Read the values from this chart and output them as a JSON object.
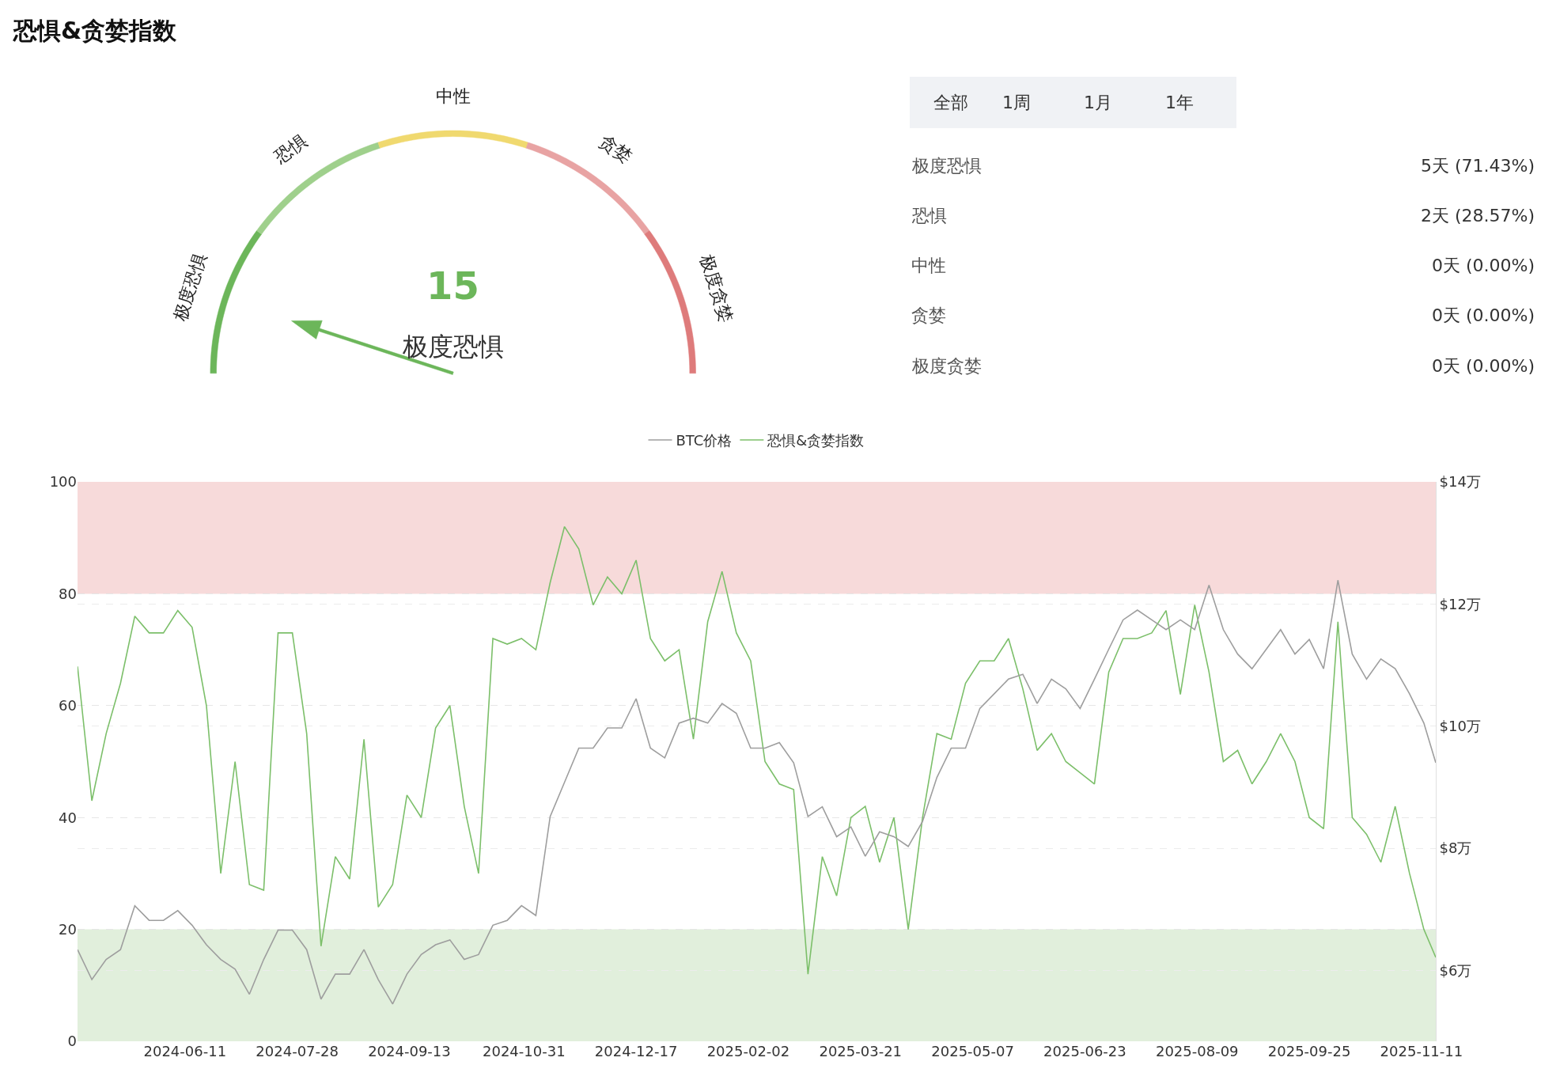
{
  "chart_data": [
    {
      "type": "donut",
      "title": "恐惧&贪婪指数",
      "categories": [
        "极度恐惧",
        "恐惧",
        "中性",
        "贪婪",
        "极度贪婪"
      ],
      "values": [
        20,
        20,
        20,
        20,
        20
      ],
      "colors": [
        "#6cb65a",
        "#9fd08c",
        "#f0d96f",
        "#e8a3a3",
        "#de7b7b"
      ],
      "needle": "极度恐惧",
      "annotations": [
        "15"
      ]
    },
    {
      "type": "other",
      "annotations": [
        "全部",
        "1周",
        "1月",
        "1年"
      ],
      "categories": [
        "极度恐惧",
        "恐惧",
        "中性",
        "贪婪",
        "极度贪婪"
      ],
      "value_labels": [
        "5天 (71.43%)",
        "2天 (28.57%)",
        "0天 (0.00%)",
        "0天 (0.00%)",
        "0天 (0.00%)"
      ]
    },
    {
      "type": "line",
      "x": [
        "2024-04-27",
        "2024-05-03",
        "2024-05-09",
        "2024-05-15",
        "2024-05-21",
        "2024-05-27",
        "2024-06-02",
        "2024-06-08",
        "2024-06-14",
        "2024-06-20",
        "2024-06-26",
        "2024-07-02",
        "2024-07-08",
        "2024-07-14",
        "2024-07-20",
        "2024-07-26",
        "2024-08-01",
        "2024-08-07",
        "2024-08-13",
        "2024-08-19",
        "2024-08-25",
        "2024-08-31",
        "2024-09-06",
        "2024-09-12",
        "2024-09-18",
        "2024-09-24",
        "2024-09-30",
        "2024-10-06",
        "2024-10-12",
        "2024-10-18",
        "2024-10-24",
        "2024-10-30",
        "2024-11-05",
        "2024-11-11",
        "2024-11-17",
        "2024-11-23",
        "2024-11-29",
        "2024-12-05",
        "2024-12-11",
        "2024-12-17",
        "2024-12-23",
        "2024-12-29",
        "2025-01-04",
        "2025-01-10",
        "2025-01-16",
        "2025-01-22",
        "2025-01-28",
        "2025-02-03",
        "2025-02-09",
        "2025-02-15",
        "2025-02-21",
        "2025-02-27",
        "2025-03-05",
        "2025-03-11",
        "2025-03-17",
        "2025-03-23",
        "2025-03-29",
        "2025-04-04",
        "2025-04-10",
        "2025-04-16",
        "2025-04-22",
        "2025-04-28",
        "2025-05-04",
        "2025-05-10",
        "2025-05-16",
        "2025-05-22",
        "2025-05-28",
        "2025-06-03",
        "2025-06-09",
        "2025-06-15",
        "2025-06-21",
        "2025-06-27",
        "2025-07-03",
        "2025-07-09",
        "2025-07-15",
        "2025-07-21",
        "2025-07-27",
        "2025-08-02",
        "2025-08-08",
        "2025-08-14",
        "2025-08-20",
        "2025-08-26",
        "2025-09-01",
        "2025-09-07",
        "2025-09-13",
        "2025-09-19",
        "2025-09-25",
        "2025-10-01",
        "2025-10-07",
        "2025-10-13",
        "2025-10-19",
        "2025-10-25",
        "2025-10-31",
        "2025-11-06",
        "2025-11-12",
        "2025-11-17"
      ],
      "series": [
        {
          "name": "BTC价格",
          "color": "#9e9e9e",
          "axis": "y2",
          "values": [
            6.34,
            5.85,
            6.18,
            6.34,
            7.06,
            6.82,
            6.82,
            6.98,
            6.74,
            6.42,
            6.18,
            6.02,
            5.61,
            6.18,
            6.66,
            6.66,
            6.34,
            5.53,
            5.94,
            5.94,
            6.34,
            5.85,
            5.45,
            5.94,
            6.26,
            6.42,
            6.5,
            6.18,
            6.26,
            6.74,
            6.82,
            7.06,
            6.9,
            8.52,
            9.08,
            9.64,
            9.64,
            9.97,
            9.97,
            10.45,
            9.64,
            9.48,
            10.05,
            10.13,
            10.05,
            10.37,
            10.21,
            9.64,
            9.64,
            9.73,
            9.4,
            8.52,
            8.68,
            8.19,
            8.35,
            7.87,
            8.27,
            8.19,
            8.03,
            8.44,
            9.16,
            9.64,
            9.64,
            10.29,
            10.53,
            10.77,
            10.85,
            10.37,
            10.77,
            10.61,
            10.29,
            10.77,
            11.26,
            11.74,
            11.9,
            11.74,
            11.58,
            11.74,
            11.58,
            12.31,
            11.58,
            11.18,
            10.94,
            11.26,
            11.58,
            11.18,
            11.42,
            10.94,
            12.39,
            11.18,
            10.77,
            11.1,
            10.94,
            10.53,
            10.05,
            9.4
          ]
        },
        {
          "name": "恐惧&贪婪指数",
          "color": "#7cbf6a",
          "values": [
            67,
            43,
            55,
            64,
            76,
            73,
            73,
            77,
            74,
            60,
            30,
            50,
            28,
            27,
            73,
            73,
            55,
            17,
            33,
            29,
            54,
            24,
            28,
            44,
            40,
            56,
            60,
            42,
            30,
            72,
            71,
            72,
            70,
            82,
            92,
            88,
            78,
            83,
            80,
            86,
            72,
            68,
            70,
            54,
            75,
            84,
            73,
            68,
            50,
            46,
            45,
            12,
            33,
            26,
            40,
            42,
            32,
            40,
            20,
            40,
            55,
            54,
            64,
            68,
            68,
            72,
            63,
            52,
            55,
            50,
            48,
            46,
            66,
            72,
            72,
            73,
            77,
            62,
            78,
            66,
            50,
            52,
            46,
            50,
            55,
            50,
            40,
            38,
            75,
            40,
            37,
            32,
            42,
            30,
            20,
            15
          ]
        }
      ],
      "xlim": [
        "2024-04-27",
        "2025-11-17"
      ],
      "xticks": [
        "2024-06-11",
        "2024-07-28",
        "2024-09-13",
        "2024-10-31",
        "2024-12-17",
        "2025-02-02",
        "2025-03-21",
        "2025-05-07",
        "2025-06-23",
        "2025-08-09",
        "2025-09-25",
        "2025-11-11"
      ],
      "ylim": [
        0,
        100
      ],
      "yticks": [
        0,
        20,
        40,
        60,
        80,
        100
      ],
      "y2lim": [
        4.84,
        14
      ],
      "y2ticks": [
        {
          "value": 6,
          "label": "$6万"
        },
        {
          "value": 8,
          "label": "$8万"
        },
        {
          "value": 10,
          "label": "$10万"
        },
        {
          "value": 12,
          "label": "$12万"
        },
        {
          "value": 14,
          "label": "$14万"
        }
      ],
      "bands": [
        {
          "axis": "y",
          "from": 0,
          "to": 20,
          "color": "#e1efdc"
        },
        {
          "axis": "y",
          "from": 80,
          "to": 100,
          "color": "#f7dada"
        }
      ],
      "grid": "y",
      "legend": "top"
    }
  ]
}
